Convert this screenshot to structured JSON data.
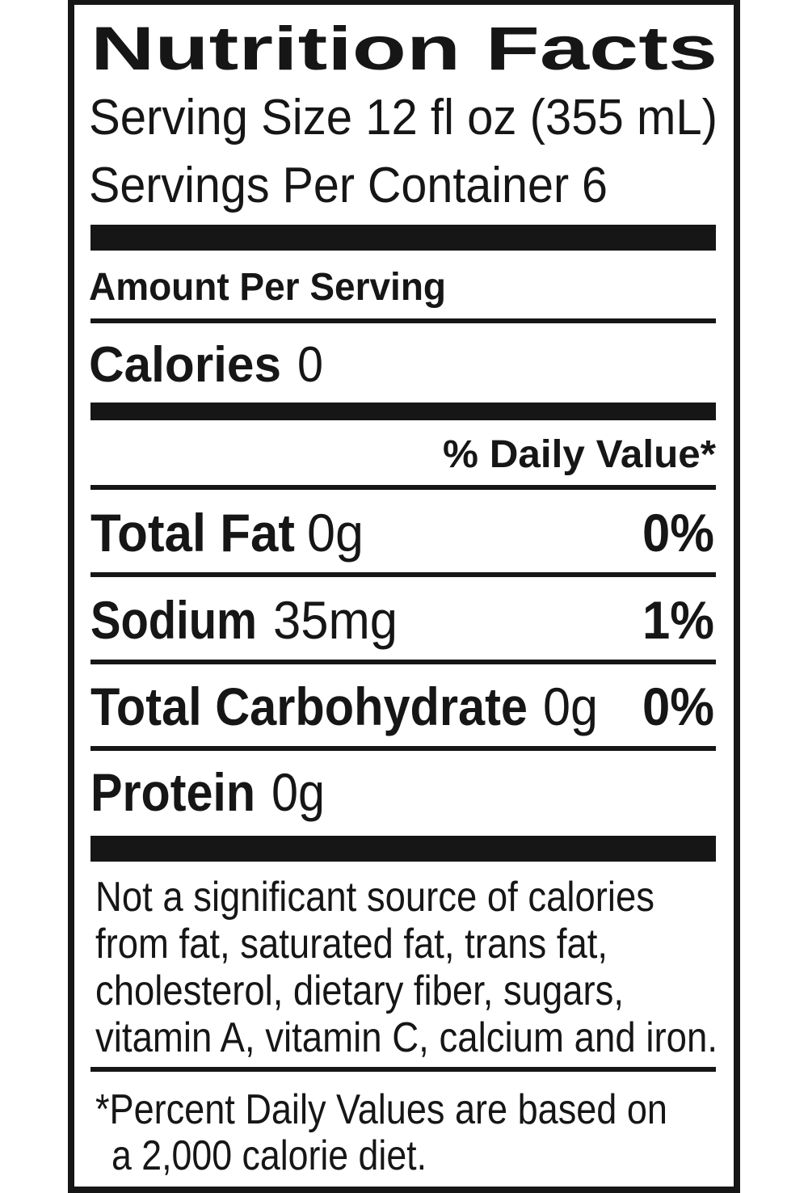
{
  "title": "Nutrition Facts",
  "serving_size": "Serving Size 12 fl oz (355 mL)",
  "servings_per_container": "Servings Per Container 6",
  "amount_per_serving": "Amount Per Serving",
  "calories": {
    "label": "Calories",
    "value": "0"
  },
  "daily_value_header": "% Daily Value*",
  "nutrients": [
    {
      "name": "Total Fat",
      "amount": "0g",
      "daily_value": "0%"
    },
    {
      "name": "Sodium",
      "amount": "35mg",
      "daily_value": "1%"
    },
    {
      "name": "Total Carbohydrate",
      "amount": "0g",
      "daily_value": "0%"
    },
    {
      "name": "Protein",
      "amount": "0g"
    }
  ],
  "not_significant_note": [
    "Not a significant source of calories",
    "from fat, saturated fat, trans fat,",
    "cholesterol, dietary fiber, sugars,",
    "vitamin A, vitamin C, calcium and iron."
  ],
  "daily_value_note": [
    "*Percent Daily Values are based on",
    "a 2,000 calorie diet."
  ]
}
